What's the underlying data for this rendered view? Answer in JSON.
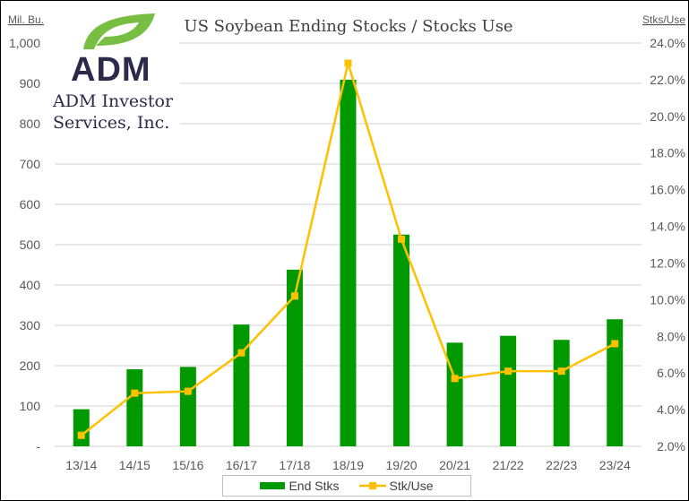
{
  "chart_data": {
    "type": "bar+line",
    "title": "US Soybean Ending Stocks / Stocks Use",
    "ylabel_left": "Mil. Bu.",
    "ylabel_right": "Stks/Use",
    "categories": [
      "13/14",
      "14/15",
      "15/16",
      "16/17",
      "17/18",
      "18/19",
      "19/20",
      "20/21",
      "21/22",
      "22/23",
      "23/24"
    ],
    "series": [
      {
        "name": "End Stks",
        "type": "bar",
        "axis": "left",
        "color": "#009900",
        "values": [
          92,
          191,
          197,
          302,
          438,
          909,
          525,
          257,
          274,
          264,
          315
        ]
      },
      {
        "name": "Stk/Use",
        "type": "line",
        "axis": "right",
        "color": "#FFC000",
        "values": [
          2.6,
          4.9,
          5.0,
          7.1,
          10.2,
          22.9,
          13.3,
          5.7,
          6.1,
          6.1,
          7.6
        ]
      }
    ],
    "ylim_left": [
      0,
      1000
    ],
    "ylim_right": [
      2,
      24
    ],
    "left_ticks": [
      "-",
      "100",
      "200",
      "300",
      "400",
      "500",
      "600",
      "700",
      "800",
      "900",
      "1,000"
    ],
    "right_ticks": [
      "2.0%",
      "4.0%",
      "6.0%",
      "8.0%",
      "10.0%",
      "12.0%",
      "14.0%",
      "16.0%",
      "18.0%",
      "20.0%",
      "22.0%",
      "24.0%"
    ],
    "grid": true,
    "legend": "bottom"
  },
  "logo": {
    "brand": "ADM",
    "company_line1": "ADM Investor",
    "company_line2": "Services, Inc.",
    "leaf_color": "#78BE43",
    "text_color": "#2B2A4A"
  }
}
